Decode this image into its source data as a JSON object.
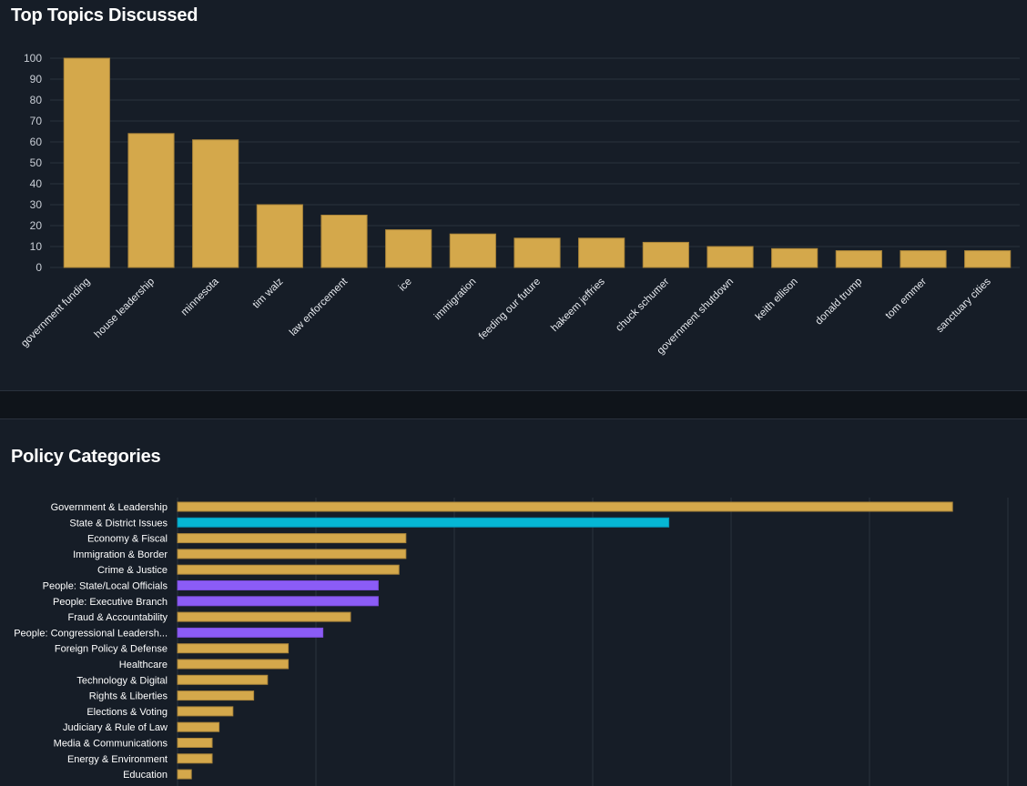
{
  "colors": {
    "background": "#161d27",
    "bar_gold": "#d4a84b",
    "bar_cyan": "#06b6d4",
    "bar_purple": "#8b5cf6",
    "grid": "#2a323d"
  },
  "chart_data": [
    {
      "id": "top-topics",
      "type": "bar",
      "title": "Top Topics Discussed",
      "categories": [
        "government funding",
        "house leadership",
        "minnesota",
        "tim walz",
        "law enforcement",
        "ice",
        "immigration",
        "feeding our future",
        "hakeem jeffries",
        "chuck schumer",
        "government shutdown",
        "keith ellison",
        "donald trump",
        "tom emmer",
        "sanctuary cities"
      ],
      "values": [
        100,
        64,
        61,
        30,
        25,
        18,
        16,
        14,
        14,
        12,
        10,
        9,
        8,
        8,
        8
      ],
      "ylim": [
        0,
        100
      ],
      "yticks": [
        0,
        10,
        20,
        30,
        40,
        50,
        60,
        70,
        80,
        90,
        100
      ],
      "xlabel": "",
      "ylabel": "",
      "grid": true
    },
    {
      "id": "policy-categories",
      "type": "bar",
      "orientation": "horizontal",
      "title": "Policy Categories",
      "categories": [
        "Government & Leadership",
        "State & District Issues",
        "Economy & Fiscal",
        "Immigration & Border",
        "Crime & Justice",
        "People: State/Local Officials",
        "People: Executive Branch",
        "Fraud & Accountability",
        "People: Congressional Leadersh...",
        "Foreign Policy & Defense",
        "Healthcare",
        "Technology & Digital",
        "Rights & Liberties",
        "Elections & Voting",
        "Judiciary & Rule of Law",
        "Media & Communications",
        "Energy & Environment",
        "Education"
      ],
      "values": [
        112,
        71,
        33,
        33,
        32,
        29,
        29,
        25,
        21,
        16,
        16,
        13,
        11,
        8,
        6,
        5,
        5,
        2
      ],
      "bar_groups": [
        "policy",
        "state",
        "policy",
        "policy",
        "policy",
        "people",
        "people",
        "policy",
        "people",
        "policy",
        "policy",
        "policy",
        "policy",
        "policy",
        "policy",
        "policy",
        "policy",
        "policy"
      ],
      "xlim": [
        0,
        120
      ],
      "grid": true
    }
  ]
}
